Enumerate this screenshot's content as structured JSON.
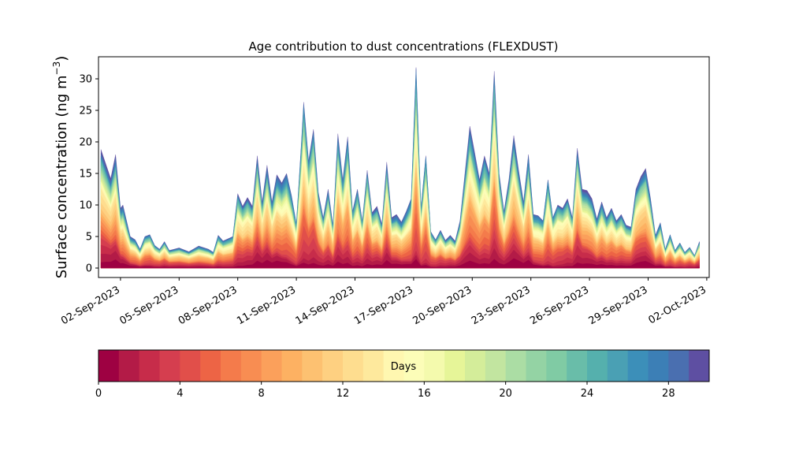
{
  "chart_data": {
    "type": "area",
    "stacked": true,
    "title": "Age contribution to dust concentrations (FLEXDUST)",
    "ylabel_main": "Surface concentration (ng m",
    "ylabel_sup": "−3",
    "ylabel_close": ")",
    "ylim": [
      -1.5,
      33.5
    ],
    "yticks": [
      0,
      5,
      10,
      15,
      20,
      25,
      30
    ],
    "x_axis": "date",
    "xlim": [
      "2023-08-31T21:00",
      "2023-10-02T03:00"
    ],
    "xticks": [
      "02-Sep-2023",
      "05-Sep-2023",
      "08-Sep-2023",
      "11-Sep-2023",
      "14-Sep-2023",
      "17-Sep-2023",
      "20-Sep-2023",
      "23-Sep-2023",
      "26-Sep-2023",
      "29-Sep-2023",
      "02-Oct-2023"
    ],
    "xtick_dates": [
      "2023-09-02",
      "2023-09-05",
      "2023-09-08",
      "2023-09-11",
      "2023-09-14",
      "2023-09-17",
      "2023-09-20",
      "2023-09-23",
      "2023-09-26",
      "2023-09-29",
      "2023-10-02"
    ],
    "total": [
      [
        "2023-09-01T00:00",
        18.8
      ],
      [
        "2023-09-01T06:00",
        16.5
      ],
      [
        "2023-09-01T12:00",
        14.2
      ],
      [
        "2023-09-01T18:00",
        18.0
      ],
      [
        "2023-09-02T00:00",
        9.5
      ],
      [
        "2023-09-02T03:00",
        10.0
      ],
      [
        "2023-09-02T12:00",
        5.0
      ],
      [
        "2023-09-02T18:00",
        4.5
      ],
      [
        "2023-09-03T00:00",
        3.0
      ],
      [
        "2023-09-03T06:00",
        5.0
      ],
      [
        "2023-09-03T12:00",
        5.3
      ],
      [
        "2023-09-03T18:00",
        3.6
      ],
      [
        "2023-09-04T00:00",
        3.0
      ],
      [
        "2023-09-04T06:00",
        4.2
      ],
      [
        "2023-09-04T12:00",
        2.8
      ],
      [
        "2023-09-05T00:00",
        3.2
      ],
      [
        "2023-09-05T12:00",
        2.6
      ],
      [
        "2023-09-06T00:00",
        3.5
      ],
      [
        "2023-09-06T12:00",
        3.0
      ],
      [
        "2023-09-06T18:00",
        2.5
      ],
      [
        "2023-09-07T00:00",
        5.2
      ],
      [
        "2023-09-07T06:00",
        4.3
      ],
      [
        "2023-09-07T18:00",
        5.0
      ],
      [
        "2023-09-08T00:00",
        11.8
      ],
      [
        "2023-09-08T06:00",
        9.8
      ],
      [
        "2023-09-08T12:00",
        11.2
      ],
      [
        "2023-09-08T18:00",
        9.8
      ],
      [
        "2023-09-09T00:00",
        17.8
      ],
      [
        "2023-09-09T06:00",
        10.5
      ],
      [
        "2023-09-09T12:00",
        16.3
      ],
      [
        "2023-09-09T18:00",
        10.5
      ],
      [
        "2023-09-10T00:00",
        14.8
      ],
      [
        "2023-09-10T06:00",
        13.5
      ],
      [
        "2023-09-10T12:00",
        15.0
      ],
      [
        "2023-09-10T18:00",
        11.5
      ],
      [
        "2023-09-11T00:00",
        7.0
      ],
      [
        "2023-09-11T06:00",
        19.5
      ],
      [
        "2023-09-11T09:00",
        26.3
      ],
      [
        "2023-09-11T15:00",
        17.0
      ],
      [
        "2023-09-11T21:00",
        22.0
      ],
      [
        "2023-09-12T03:00",
        12.0
      ],
      [
        "2023-09-12T09:00",
        8.0
      ],
      [
        "2023-09-12T15:00",
        12.5
      ],
      [
        "2023-09-12T21:00",
        6.8
      ],
      [
        "2023-09-13T03:00",
        21.3
      ],
      [
        "2023-09-13T09:00",
        14.0
      ],
      [
        "2023-09-13T15:00",
        20.8
      ],
      [
        "2023-09-13T21:00",
        9.0
      ],
      [
        "2023-09-14T03:00",
        12.5
      ],
      [
        "2023-09-14T09:00",
        7.5
      ],
      [
        "2023-09-14T15:00",
        15.5
      ],
      [
        "2023-09-14T21:00",
        8.8
      ],
      [
        "2023-09-15T03:00",
        9.8
      ],
      [
        "2023-09-15T09:00",
        7.0
      ],
      [
        "2023-09-15T15:00",
        16.8
      ],
      [
        "2023-09-15T21:00",
        8.0
      ],
      [
        "2023-09-16T03:00",
        8.5
      ],
      [
        "2023-09-16T09:00",
        7.3
      ],
      [
        "2023-09-16T15:00",
        9.0
      ],
      [
        "2023-09-16T21:00",
        11.0
      ],
      [
        "2023-09-17T03:00",
        31.8
      ],
      [
        "2023-09-17T09:00",
        9.5
      ],
      [
        "2023-09-17T15:00",
        17.8
      ],
      [
        "2023-09-17T21:00",
        5.8
      ],
      [
        "2023-09-18T03:00",
        4.5
      ],
      [
        "2023-09-18T09:00",
        6.0
      ],
      [
        "2023-09-18T15:00",
        4.4
      ],
      [
        "2023-09-18T21:00",
        5.2
      ],
      [
        "2023-09-19T03:00",
        4.3
      ],
      [
        "2023-09-19T09:00",
        7.5
      ],
      [
        "2023-09-19T15:00",
        15.0
      ],
      [
        "2023-09-19T21:00",
        22.5
      ],
      [
        "2023-09-20T03:00",
        18.3
      ],
      [
        "2023-09-20T09:00",
        14.0
      ],
      [
        "2023-09-20T15:00",
        17.8
      ],
      [
        "2023-09-20T21:00",
        15.0
      ],
      [
        "2023-09-21T03:00",
        31.2
      ],
      [
        "2023-09-21T09:00",
        15.0
      ],
      [
        "2023-09-21T15:00",
        9.0
      ],
      [
        "2023-09-21T21:00",
        14.0
      ],
      [
        "2023-09-22T03:00",
        21.0
      ],
      [
        "2023-09-22T09:00",
        15.5
      ],
      [
        "2023-09-22T15:00",
        10.5
      ],
      [
        "2023-09-22T21:00",
        18.0
      ],
      [
        "2023-09-23T03:00",
        8.5
      ],
      [
        "2023-09-23T09:00",
        8.3
      ],
      [
        "2023-09-23T15:00",
        7.5
      ],
      [
        "2023-09-23T21:00",
        14.0
      ],
      [
        "2023-09-24T03:00",
        8.0
      ],
      [
        "2023-09-24T09:00",
        10.0
      ],
      [
        "2023-09-24T15:00",
        9.5
      ],
      [
        "2023-09-24T21:00",
        11.0
      ],
      [
        "2023-09-25T03:00",
        8.0
      ],
      [
        "2023-09-25T09:00",
        19.0
      ],
      [
        "2023-09-25T15:00",
        12.5
      ],
      [
        "2023-09-25T21:00",
        12.3
      ],
      [
        "2023-09-26T03:00",
        11.0
      ],
      [
        "2023-09-26T09:00",
        7.8
      ],
      [
        "2023-09-26T15:00",
        10.5
      ],
      [
        "2023-09-26T21:00",
        8.0
      ],
      [
        "2023-09-27T03:00",
        9.5
      ],
      [
        "2023-09-27T09:00",
        7.5
      ],
      [
        "2023-09-27T15:00",
        8.5
      ],
      [
        "2023-09-27T21:00",
        6.8
      ],
      [
        "2023-09-28T03:00",
        6.5
      ],
      [
        "2023-09-28T09:00",
        12.5
      ],
      [
        "2023-09-28T15:00",
        14.5
      ],
      [
        "2023-09-28T21:00",
        15.8
      ],
      [
        "2023-09-29T03:00",
        11.0
      ],
      [
        "2023-09-29T09:00",
        5.2
      ],
      [
        "2023-09-29T15:00",
        7.2
      ],
      [
        "2023-09-29T21:00",
        3.0
      ],
      [
        "2023-09-30T03:00",
        5.3
      ],
      [
        "2023-09-30T09:00",
        2.8
      ],
      [
        "2023-09-30T15:00",
        4.0
      ],
      [
        "2023-09-30T21:00",
        2.5
      ],
      [
        "2023-10-01T03:00",
        3.3
      ],
      [
        "2023-10-01T09:00",
        2.0
      ],
      [
        "2023-10-01T15:00",
        4.2
      ]
    ],
    "colorbar": {
      "label": "Days",
      "min": 0,
      "max": 30,
      "ticks": [
        0,
        4,
        8,
        12,
        16,
        20,
        24,
        28
      ],
      "colors": [
        "#9e0142",
        "#b31b47",
        "#c72c4a",
        "#d53e4f",
        "#e14f4a",
        "#ed6445",
        "#f47b4b",
        "#f88d52",
        "#fba05b",
        "#fdb162",
        "#fdc171",
        "#fed081",
        "#fedd8f",
        "#fee99d",
        "#fff7b0",
        "#fcfdb8",
        "#f4faad",
        "#e6f598",
        "#d4ed9a",
        "#c2e5a0",
        "#abdda4",
        "#94d3a4",
        "#80cba4",
        "#69bda9",
        "#55b0ad",
        "#4aa0b4",
        "#3c8fb9",
        "#3c7fb6",
        "#4a6fb0",
        "#5e4fa2"
      ]
    }
  }
}
